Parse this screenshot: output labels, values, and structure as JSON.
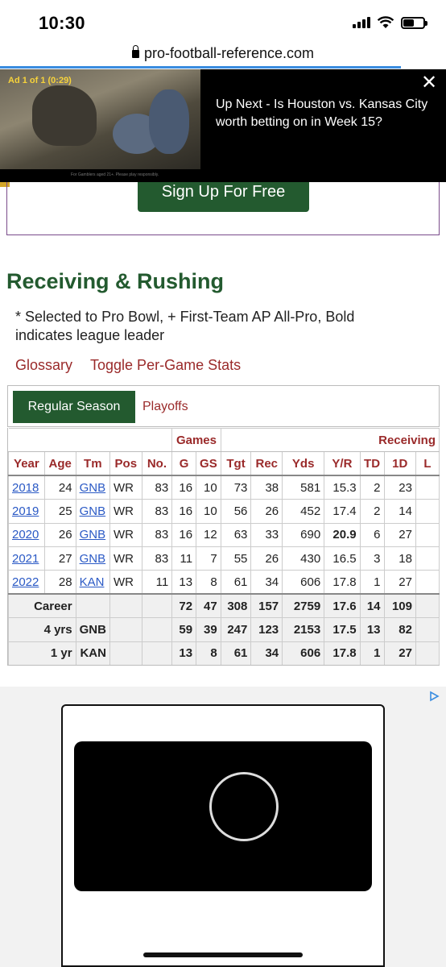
{
  "status_bar": {
    "time": "10:30"
  },
  "url_bar": {
    "domain": "pro-football-reference.com"
  },
  "video_ad": {
    "label": "Ad 1 of 1 (0:29)",
    "title": "Up Next - Is Houston vs. Kansas City worth betting on in Week 15?",
    "close": "✕",
    "caption": "For Gamblers aged 21+. Please play responsibly."
  },
  "signup": {
    "button_label": "Sign Up For Free"
  },
  "section": {
    "title": "Receiving & Rushing",
    "note": "* Selected to Pro Bowl, + First-Team AP All-Pro, Bold indicates league leader",
    "links": {
      "glossary": "Glossary",
      "toggle": "Toggle Per-Game Stats"
    },
    "tabs": {
      "regular": "Regular Season",
      "playoffs": "Playoffs"
    }
  },
  "table": {
    "over_headers": {
      "games": "Games",
      "receiving": "Receiving"
    },
    "columns": [
      "Year",
      "Age",
      "Tm",
      "Pos",
      "No.",
      "G",
      "GS",
      "Tgt",
      "Rec",
      "Yds",
      "Y/R",
      "TD",
      "1D",
      "L"
    ],
    "rows": [
      {
        "year": "2018",
        "age": "24",
        "tm": "GNB",
        "pos": "WR",
        "no": "83",
        "g": "16",
        "gs": "10",
        "tgt": "73",
        "rec": "38",
        "yds": "581",
        "yr": "15.3",
        "td": "2",
        "fd": "23",
        "l": ""
      },
      {
        "year": "2019",
        "age": "25",
        "tm": "GNB",
        "pos": "WR",
        "no": "83",
        "g": "16",
        "gs": "10",
        "tgt": "56",
        "rec": "26",
        "yds": "452",
        "yr": "17.4",
        "td": "2",
        "fd": "14",
        "l": ""
      },
      {
        "year": "2020",
        "age": "26",
        "tm": "GNB",
        "pos": "WR",
        "no": "83",
        "g": "16",
        "gs": "12",
        "tgt": "63",
        "rec": "33",
        "yds": "690",
        "yr": "20.9",
        "td": "6",
        "fd": "27",
        "l": ""
      },
      {
        "year": "2021",
        "age": "27",
        "tm": "GNB",
        "pos": "WR",
        "no": "83",
        "g": "11",
        "gs": "7",
        "tgt": "55",
        "rec": "26",
        "yds": "430",
        "yr": "16.5",
        "td": "3",
        "fd": "18",
        "l": ""
      },
      {
        "year": "2022",
        "age": "28",
        "tm": "KAN",
        "pos": "WR",
        "no": "11",
        "g": "13",
        "gs": "8",
        "tgt": "61",
        "rec": "34",
        "yds": "606",
        "yr": "17.8",
        "td": "1",
        "fd": "27",
        "l": ""
      }
    ],
    "totals": [
      {
        "label": "Career",
        "tm": "",
        "g": "72",
        "gs": "47",
        "tgt": "308",
        "rec": "157",
        "yds": "2759",
        "yr": "17.6",
        "td": "14",
        "fd": "109"
      },
      {
        "label": "4 yrs",
        "tm": "GNB",
        "g": "59",
        "gs": "39",
        "tgt": "247",
        "rec": "123",
        "yds": "2153",
        "yr": "17.5",
        "td": "13",
        "fd": "82"
      },
      {
        "label": "1 yr",
        "tm": "KAN",
        "g": "13",
        "gs": "8",
        "tgt": "61",
        "rec": "34",
        "yds": "606",
        "yr": "17.8",
        "td": "1",
        "fd": "27"
      }
    ]
  },
  "colors": {
    "accent_green": "#235a2f",
    "link_red": "#9a2a2a",
    "link_blue": "#2a59c5"
  }
}
